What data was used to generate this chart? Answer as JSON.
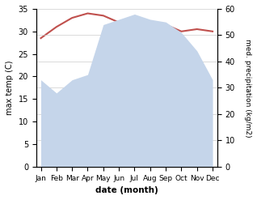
{
  "months": [
    "Jan",
    "Feb",
    "Mar",
    "Apr",
    "May",
    "Jun",
    "Jul",
    "Aug",
    "Sep",
    "Oct",
    "Nov",
    "Dec"
  ],
  "temperature": [
    28.5,
    31.0,
    33.0,
    34.0,
    33.5,
    32.0,
    33.0,
    31.5,
    31.5,
    30.0,
    30.5,
    30.0
  ],
  "rainfall": [
    33,
    28,
    33,
    35,
    54,
    56,
    58,
    56,
    55,
    51,
    44,
    33
  ],
  "temp_color": "#c0504d",
  "rain_fill_color": "#c5d5ea",
  "temp_ylim": [
    0,
    35
  ],
  "rain_ylim": [
    0,
    60
  ],
  "xlabel": "date (month)",
  "ylabel_left": "max temp (C)",
  "ylabel_right": "med. precipitation (kg/m2)",
  "background_color": "#ffffff",
  "grid_color": "#cccccc"
}
